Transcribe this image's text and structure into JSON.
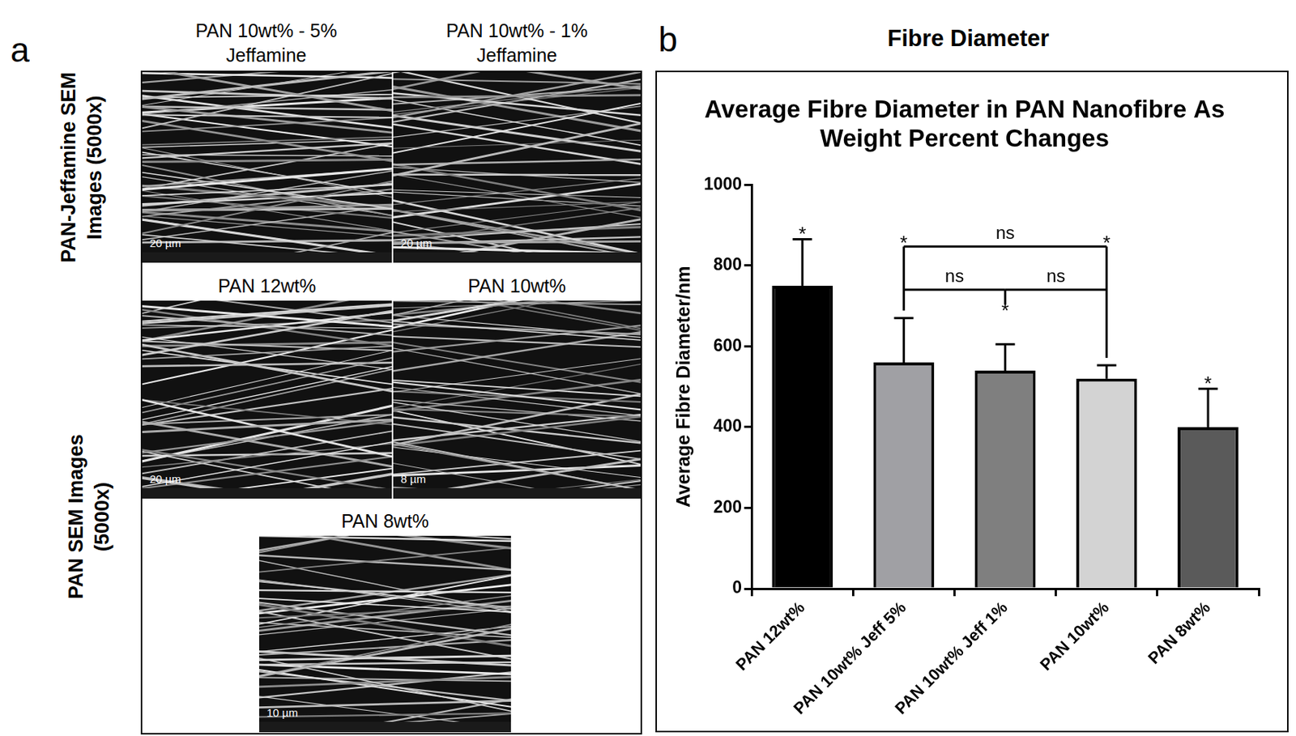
{
  "panel_a": {
    "letter": "a",
    "row_labels": [
      "PAN-Jeffamine SEM Images (5000x)",
      "PAN SEM Images (5000x)"
    ],
    "images": [
      {
        "title": "PAN 10wt% - 5% Jeffamine",
        "scale_bar": "20 µm"
      },
      {
        "title": "PAN 10wt% - 1% Jeffamine",
        "scale_bar": "20 µm"
      },
      {
        "title": "PAN 12wt%",
        "scale_bar": "20 µm"
      },
      {
        "title": "PAN 10wt%",
        "scale_bar": "8 µm"
      },
      {
        "title": "PAN 8wt%",
        "scale_bar": "10 µm"
      }
    ]
  },
  "panel_b": {
    "letter": "b",
    "heading": "Fibre Diameter"
  },
  "chart_data": {
    "type": "bar",
    "title": "Average Fibre Diameter in PAN Nanofibre As Weight Percent Changes",
    "y_label": "Average Fibre Diameter/nm",
    "categories": [
      "PAN 12wt%",
      "PAN 10wt% Jeff 5%",
      "PAN 10wt% Jeff 1%",
      "PAN 10wt%",
      "PAN 8wt%"
    ],
    "values": [
      750,
      560,
      540,
      520,
      400
    ],
    "errors": [
      115,
      110,
      65,
      33,
      95
    ],
    "colors": [
      "#000000",
      "#a0a0a4",
      "#7f7f7f",
      "#d3d3d3",
      "#5a5a5a"
    ],
    "ylim": [
      0,
      1000
    ],
    "yticks": [
      0,
      200,
      400,
      600,
      800,
      1000
    ],
    "grid": false,
    "bar_labels": [
      "*",
      "*",
      "*",
      "*",
      "*"
    ],
    "significance": [
      {
        "from": "PAN 10wt% Jeff 5%",
        "to": "PAN 10wt% Jeff 1%",
        "label": "ns"
      },
      {
        "from": "PAN 10wt% Jeff 1%",
        "to": "PAN 10wt%",
        "label": "ns"
      },
      {
        "from": "PAN 10wt% Jeff 5%",
        "to": "PAN 10wt%",
        "label": "ns"
      }
    ]
  }
}
